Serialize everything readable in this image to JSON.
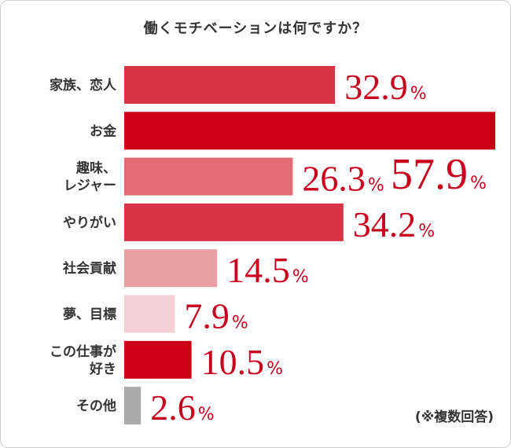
{
  "chart_data": {
    "type": "bar",
    "orientation": "horizontal",
    "title": "働くモチベーションは何ですか？",
    "categories": [
      "家族、恋人",
      "お金",
      "趣味、\nレジャー",
      "やりがい",
      "社会貢献",
      "夢、目標",
      "この仕事が\n好き",
      "その他"
    ],
    "values": [
      32.9,
      57.9,
      26.3,
      34.2,
      14.5,
      7.9,
      10.5,
      2.6
    ],
    "value_unit": "%",
    "value_labels": [
      "32.9",
      "57.9",
      "26.3",
      "34.2",
      "14.5",
      "7.9",
      "10.5",
      "2.6"
    ],
    "colors": [
      "#d93445",
      "#cc0015",
      "#e36b75",
      "#d93445",
      "#eb9ea4",
      "#f4cfd3",
      "#cc0015",
      "#aaaaaa"
    ],
    "highlight_index": 1,
    "xlim": [
      0,
      57.9
    ],
    "grid": false,
    "legend": "none",
    "note": "(※複数回答)"
  }
}
